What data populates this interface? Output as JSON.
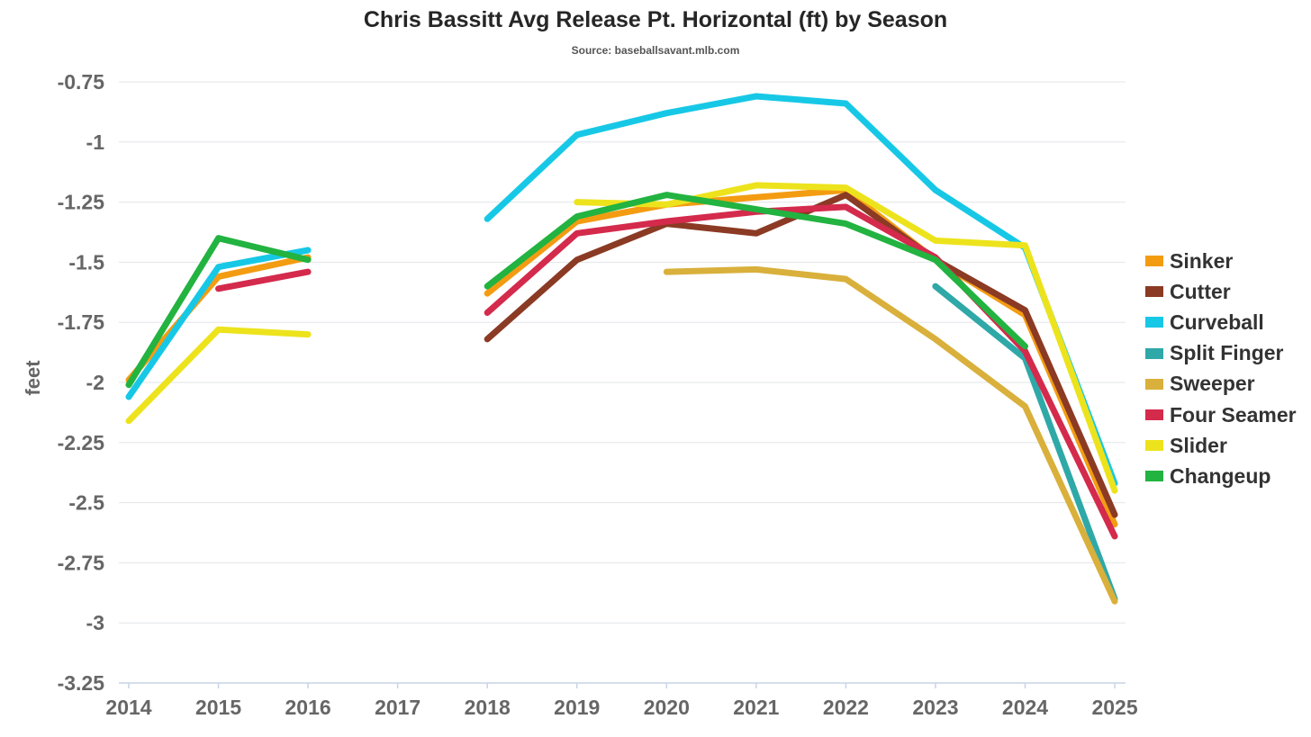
{
  "chart_data": {
    "type": "line",
    "title": "Chris Bassitt Avg Release Pt. Horizontal (ft) by Season",
    "subtitle": "Source: baseballsavant.mlb.com",
    "xlabel": "",
    "ylabel": "feet",
    "categories": [
      "2014",
      "2015",
      "2016",
      "2017",
      "2018",
      "2019",
      "2020",
      "2021",
      "2022",
      "2023",
      "2024",
      "2025"
    ],
    "yticks": [
      "-0.75",
      "-1",
      "-1.25",
      "-1.5",
      "-1.75",
      "-2",
      "-2.25",
      "-2.5",
      "-2.75",
      "-3",
      "-3.25"
    ],
    "ylim": [
      -3.25,
      -0.75
    ],
    "grid": true,
    "legend_position": "right",
    "series": [
      {
        "name": "Sinker",
        "color": "#f39c12",
        "values": [
          -1.99,
          -1.56,
          -1.48,
          null,
          -1.63,
          -1.33,
          -1.26,
          -1.23,
          -1.2,
          -1.49,
          -1.72,
          -2.59
        ]
      },
      {
        "name": "Cutter",
        "color": "#8b3a24",
        "values": [
          null,
          null,
          null,
          null,
          -1.82,
          -1.49,
          -1.34,
          -1.38,
          -1.22,
          -1.49,
          -1.7,
          -2.55
        ]
      },
      {
        "name": "Curveball",
        "color": "#17c8e6",
        "values": [
          -2.06,
          -1.52,
          -1.45,
          null,
          -1.32,
          -0.97,
          -0.88,
          -0.81,
          -0.84,
          -1.2,
          -1.44,
          -2.42
        ]
      },
      {
        "name": "Split Finger",
        "color": "#2fa8a8",
        "values": [
          null,
          null,
          null,
          null,
          null,
          null,
          null,
          null,
          null,
          -1.6,
          -1.9,
          -2.9
        ]
      },
      {
        "name": "Sweeper",
        "color": "#d9b03b",
        "values": [
          null,
          null,
          null,
          null,
          null,
          null,
          -1.54,
          -1.53,
          -1.57,
          -1.82,
          -2.1,
          -2.91
        ]
      },
      {
        "name": "Four Seamer",
        "color": "#d42a4c",
        "values": [
          null,
          -1.61,
          -1.54,
          null,
          -1.71,
          -1.38,
          -1.33,
          -1.29,
          -1.27,
          -1.48,
          -1.87,
          -2.64
        ]
      },
      {
        "name": "Slider",
        "color": "#ede31c",
        "values": [
          -2.16,
          -1.78,
          -1.8,
          null,
          null,
          -1.25,
          -1.26,
          -1.18,
          -1.19,
          -1.41,
          -1.43,
          -2.45
        ]
      },
      {
        "name": "Changeup",
        "color": "#22b340",
        "values": [
          -2.01,
          -1.4,
          -1.49,
          null,
          -1.6,
          -1.31,
          -1.22,
          -1.28,
          -1.34,
          -1.49,
          -1.85,
          null
        ]
      }
    ]
  }
}
